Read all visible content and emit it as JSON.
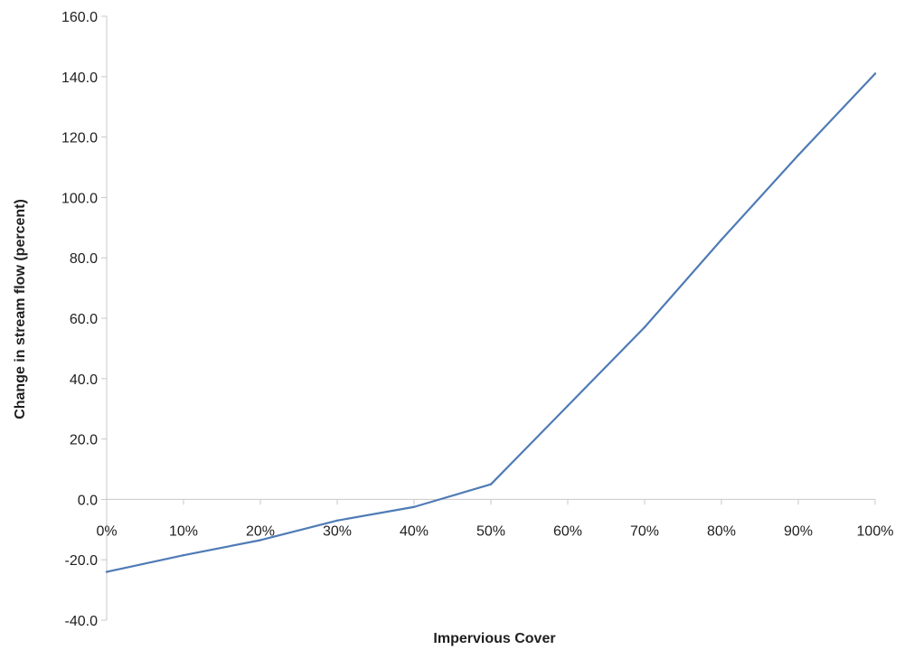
{
  "chart_data": {
    "type": "line",
    "title": "",
    "xlabel": "Impervious Cover",
    "ylabel": "Change in stream flow (percent)",
    "x": [
      0,
      10,
      20,
      30,
      40,
      50,
      60,
      70,
      80,
      90,
      100
    ],
    "x_tick_labels": [
      "0%",
      "10%",
      "20%",
      "30%",
      "40%",
      "50%",
      "60%",
      "70%",
      "80%",
      "90%",
      "100%"
    ],
    "xlim": [
      0,
      100
    ],
    "ylim": [
      -40,
      160
    ],
    "y_ticks": [
      -40,
      -20,
      0,
      20,
      40,
      60,
      80,
      100,
      120,
      140,
      160
    ],
    "y_tick_labels": [
      "-40.0",
      "-20.0",
      "0.0",
      "20.0",
      "40.0",
      "60.0",
      "80.0",
      "100.0",
      "120.0",
      "140.0",
      "160.0"
    ],
    "series": [
      {
        "values": [
          -24.0,
          -18.5,
          -13.5,
          -7.0,
          -2.5,
          5.0,
          31.0,
          57.0,
          86.0,
          114.0,
          141.0
        ]
      }
    ],
    "grid": false,
    "legend": "none",
    "colors": {
      "line": "#4f7bb5",
      "axis": "#c8c8c8",
      "text": "#1f1f1f"
    }
  }
}
